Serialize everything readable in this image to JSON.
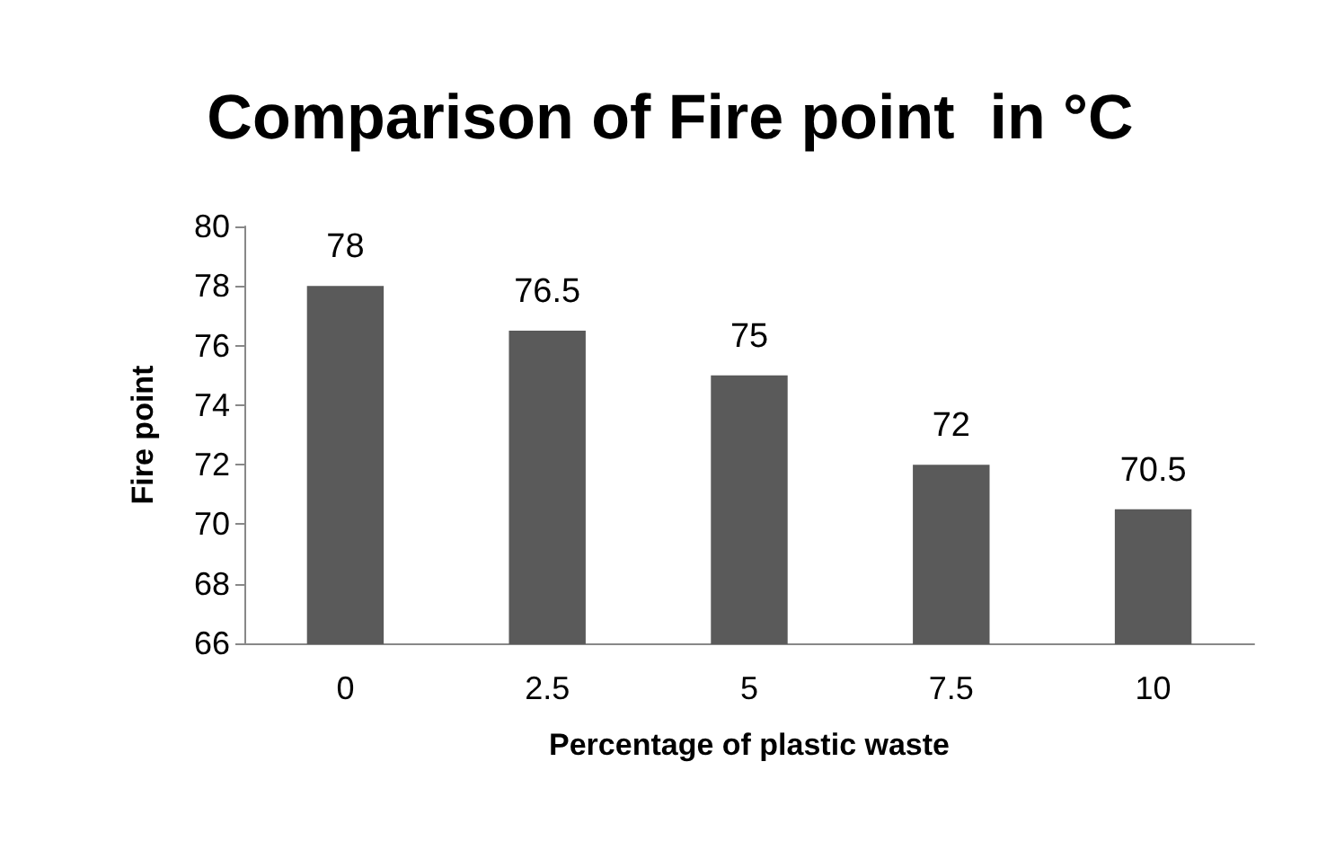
{
  "chart_data": {
    "type": "bar",
    "title": "Comparison of Fire point  in °C",
    "xlabel": "Percentage of plastic waste",
    "ylabel": "Fire point",
    "categories": [
      "0",
      "2.5",
      "5",
      "7.5",
      "10"
    ],
    "values": [
      78,
      76.5,
      75,
      72,
      70.5
    ],
    "color": "#5a5a5a",
    "ylim": [
      66,
      80
    ],
    "yticks": [
      66,
      68,
      70,
      72,
      74,
      76,
      78,
      80
    ],
    "grid": false,
    "data_labels": true
  }
}
